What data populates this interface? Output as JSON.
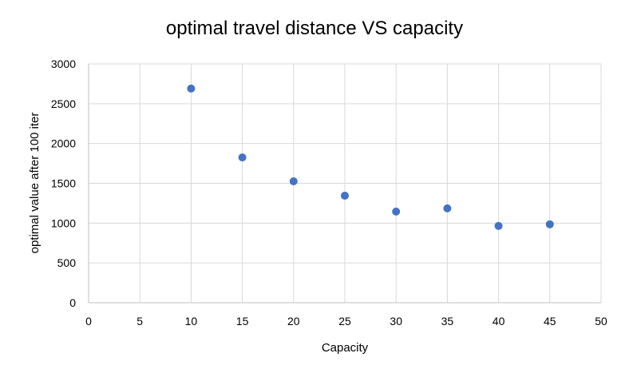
{
  "chart_data": {
    "type": "scatter",
    "title": "optimal travel distance VS capacity",
    "xlabel": "Capacity",
    "ylabel": "optimal value after 100 iter",
    "xlim": [
      0,
      50
    ],
    "ylim": [
      0,
      3000
    ],
    "x_ticks": [
      0,
      5,
      10,
      15,
      20,
      25,
      30,
      35,
      40,
      45,
      50
    ],
    "y_ticks": [
      0,
      500,
      1000,
      1500,
      2000,
      2500,
      3000
    ],
    "grid": true,
    "legend": "none",
    "series": [
      {
        "color": "#4472c4",
        "points": [
          {
            "x": 10,
            "y": 2690
          },
          {
            "x": 15,
            "y": 1825
          },
          {
            "x": 20,
            "y": 1525
          },
          {
            "x": 25,
            "y": 1345
          },
          {
            "x": 30,
            "y": 1145
          },
          {
            "x": 35,
            "y": 1185
          },
          {
            "x": 40,
            "y": 965
          },
          {
            "x": 45,
            "y": 985
          }
        ]
      }
    ]
  }
}
